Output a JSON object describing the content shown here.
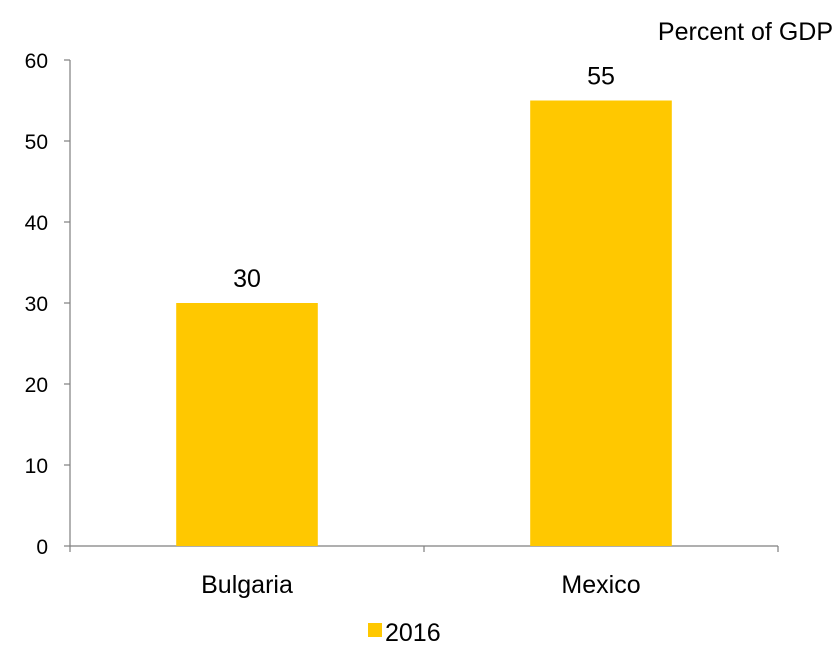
{
  "chart_data": {
    "type": "bar",
    "title": "",
    "unit_label": "Percent of GDP",
    "xlabel": "",
    "ylabel": "",
    "categories": [
      "Bulgaria",
      "Mexico"
    ],
    "series": [
      {
        "name": "2016",
        "values": [
          30,
          55
        ],
        "color": "#FFC800"
      }
    ],
    "data_labels": [
      "30",
      "55"
    ],
    "ylim": [
      0,
      60
    ],
    "yticks": [
      0,
      10,
      20,
      30,
      40,
      50,
      60
    ],
    "grid": false,
    "legend_position": "bottom-center"
  }
}
